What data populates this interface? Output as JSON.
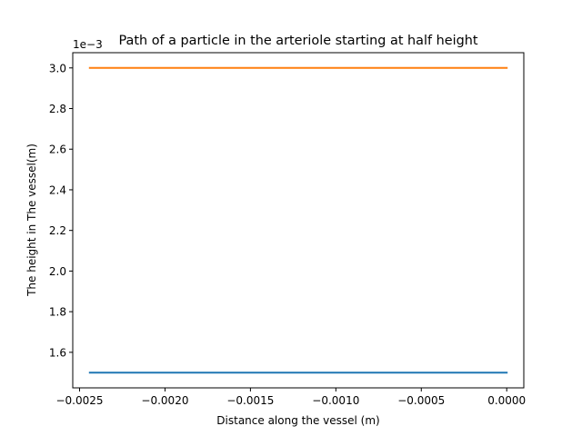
{
  "chart_data": {
    "type": "line",
    "title": "Path of a particle in the arteriole starting at half height",
    "xlabel": "Distance along the vessel (m)",
    "ylabel": "The height in The vessel(m)",
    "y_offset_label": "1e−3",
    "xlim": [
      -0.00254,
      0.0001
    ],
    "ylim": [
      1.425,
      3.075
    ],
    "xticks": [
      -0.0025,
      -0.002,
      -0.0015,
      -0.001,
      -0.0005,
      0.0
    ],
    "xtick_labels": [
      "−0.0025",
      "−0.0020",
      "−0.0015",
      "−0.0010",
      "−0.0005",
      "0.0000"
    ],
    "yticks": [
      1.6,
      1.8,
      2.0,
      2.2,
      2.4,
      2.6,
      2.8,
      3.0
    ],
    "ytick_labels": [
      "1.6",
      "1.8",
      "2.0",
      "2.2",
      "2.4",
      "2.6",
      "2.8",
      "3.0"
    ],
    "grid": false,
    "series": [
      {
        "color": "#1f77b4",
        "x": [
          -0.00244,
          0.0
        ],
        "y": [
          1.5,
          1.5
        ]
      },
      {
        "color": "#ff7f0e",
        "x": [
          -0.00244,
          0.0
        ],
        "y": [
          3.0,
          3.0
        ]
      }
    ]
  }
}
